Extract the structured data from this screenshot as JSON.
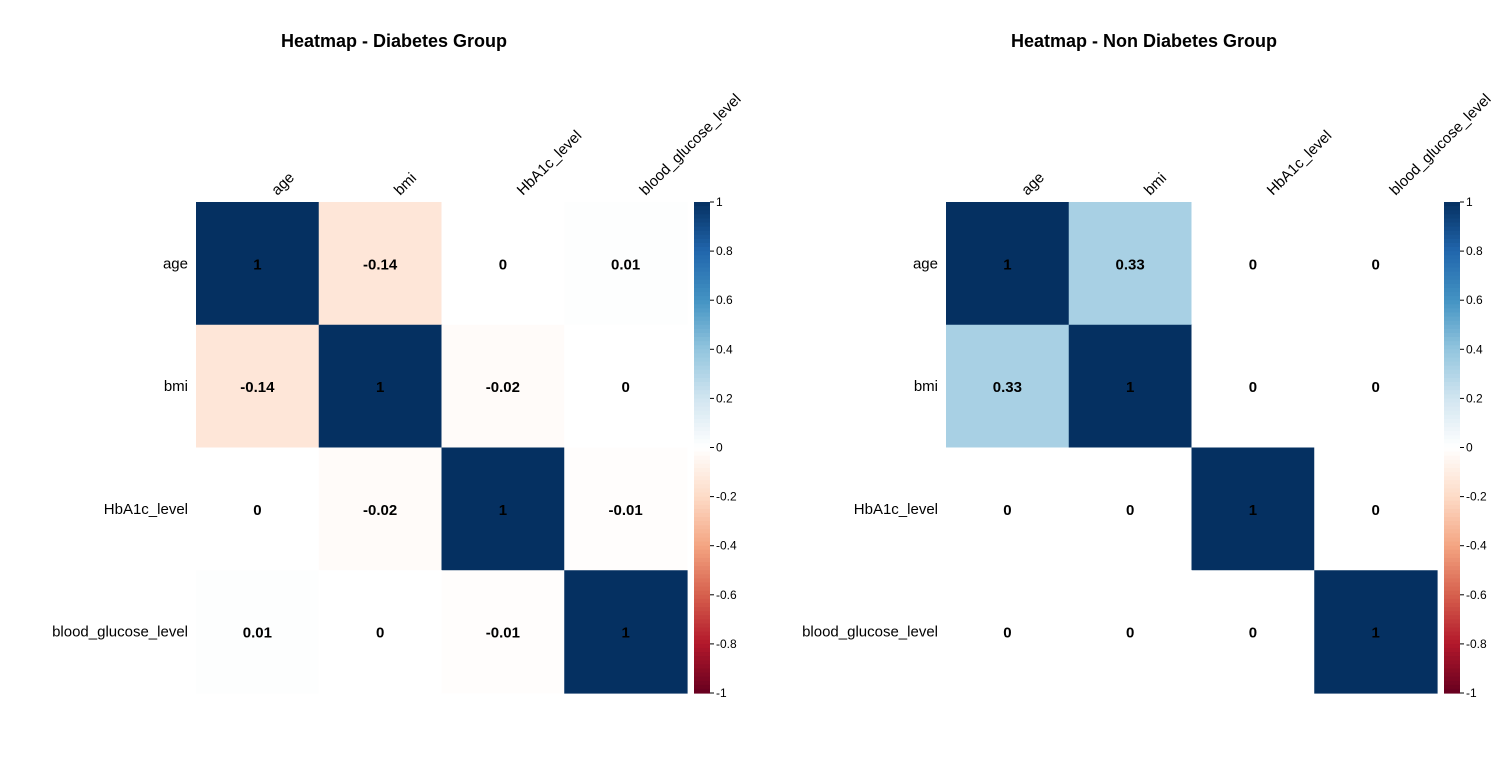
{
  "chart_data": [
    {
      "type": "heatmap",
      "title": "Heatmap - Diabetes Group",
      "variables": [
        "age",
        "bmi",
        "HbA1c_level",
        "blood_glucose_level"
      ],
      "matrix": [
        [
          1,
          -0.14,
          0,
          0.01
        ],
        [
          -0.14,
          1,
          -0.02,
          0
        ],
        [
          0,
          -0.02,
          1,
          -0.01
        ],
        [
          0.01,
          0,
          -0.01,
          1
        ]
      ],
      "labels": [
        [
          "1",
          "-0.14",
          "0",
          "0.01"
        ],
        [
          "-0.14",
          "1",
          "-0.02",
          "0"
        ],
        [
          "0",
          "-0.02",
          "1",
          "-0.01"
        ],
        [
          "0.01",
          "0",
          "-0.01",
          "1"
        ]
      ],
      "color_scale": {
        "min": -1,
        "max": 1,
        "ticks": [
          "1",
          "0.8",
          "0.6",
          "0.4",
          "0.2",
          "0",
          "-0.2",
          "-0.4",
          "-0.6",
          "-0.8",
          "-1"
        ]
      }
    },
    {
      "type": "heatmap",
      "title": "Heatmap - Non Diabetes Group",
      "variables": [
        "age",
        "bmi",
        "HbA1c_level",
        "blood_glucose_level"
      ],
      "matrix": [
        [
          1,
          0.33,
          0,
          0
        ],
        [
          0.33,
          1,
          0,
          0
        ],
        [
          0,
          0,
          1,
          0
        ],
        [
          0,
          0,
          0,
          1
        ]
      ],
      "labels": [
        [
          "1",
          "0.33",
          "0",
          "0"
        ],
        [
          "0.33",
          "1",
          "0",
          "0"
        ],
        [
          "0",
          "0",
          "1",
          "0"
        ],
        [
          "0",
          "0",
          "0",
          "1"
        ]
      ],
      "color_scale": {
        "min": -1,
        "max": 1,
        "ticks": [
          "1",
          "0.8",
          "0.6",
          "0.4",
          "0.2",
          "0",
          "-0.2",
          "-0.4",
          "-0.6",
          "-0.8",
          "-1"
        ]
      }
    }
  ],
  "colors": {
    "palette": [
      "#67001F",
      "#B2182B",
      "#D6604D",
      "#F4A582",
      "#FDDBC7",
      "#FFFFFF",
      "#D1E5F0",
      "#92C5DE",
      "#4393C3",
      "#2166AC",
      "#053061"
    ]
  }
}
